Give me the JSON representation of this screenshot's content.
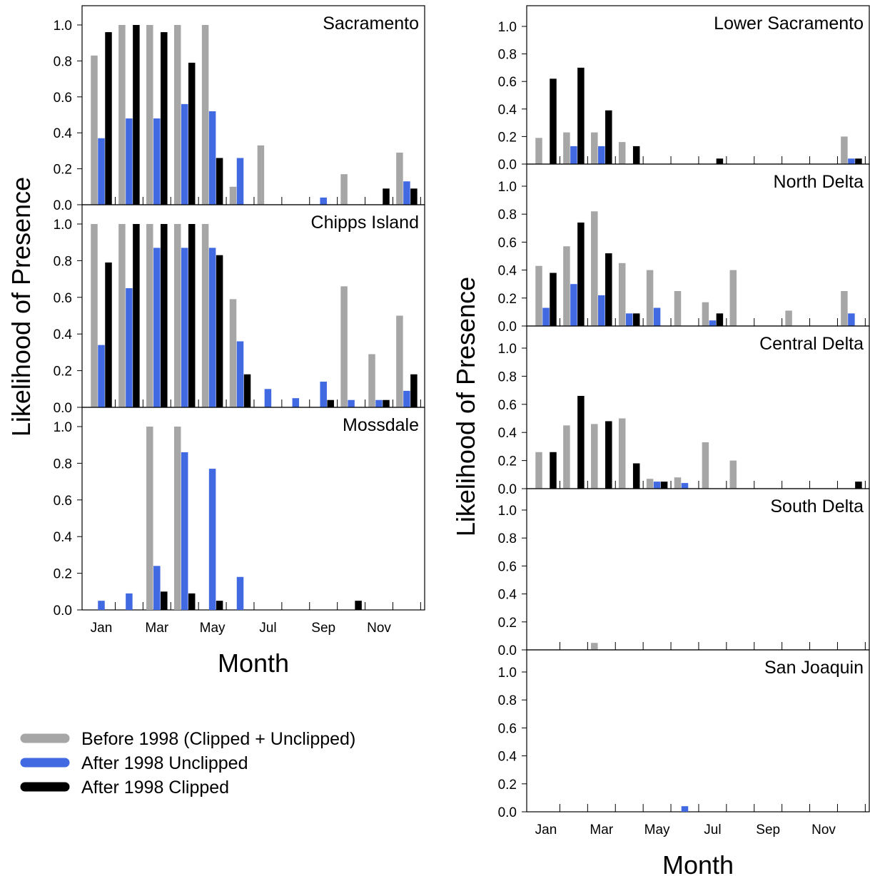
{
  "chart_data": {
    "type": "bar",
    "colors": {
      "before_1998": "#a6a6a6",
      "after_1998_unclipped": "#4169e1",
      "after_1998_clipped": "#000000"
    },
    "legend": {
      "placement": "bottom-left",
      "entries": [
        "Before 1998 (Clipped + Unclipped)",
        "After 1998 Unclipped",
        "After 1998 Clipped"
      ]
    },
    "series_keys": [
      "before_1998",
      "after_1998_unclipped",
      "after_1998_clipped"
    ],
    "month_tick_labels": [
      "Jan",
      "Mar",
      "May",
      "Jul",
      "Sep",
      "Nov"
    ],
    "y_tick_labels": [
      "0.0",
      "0.2",
      "0.4",
      "0.6",
      "0.8",
      "1.0"
    ],
    "ylim": [
      0,
      1.05
    ],
    "xlabel": "Month",
    "ylabel": "Likelihood of Presence",
    "categories": [
      "Jan",
      "Feb",
      "Mar",
      "Apr",
      "May",
      "Jun",
      "Jul",
      "Aug",
      "Sep",
      "Oct",
      "Nov",
      "Dec"
    ],
    "panels": [
      {
        "title": "Sacramento",
        "series": [
          {
            "values": [
              0.83,
              1.0,
              1.0,
              1.0,
              1.0,
              0.1,
              0.33,
              0,
              0,
              0.17,
              0,
              0.29
            ]
          },
          {
            "values": [
              0.37,
              0.48,
              0.48,
              0.56,
              0.52,
              0.26,
              0,
              0,
              0.04,
              0,
              0,
              0.13
            ]
          },
          {
            "values": [
              0.96,
              1.0,
              0.96,
              0.79,
              0.26,
              0,
              0,
              0,
              0,
              0,
              0.09,
              0.09
            ]
          }
        ]
      },
      {
        "title": "Chipps Island",
        "series": [
          {
            "values": [
              1.0,
              1.0,
              1.0,
              1.0,
              1.0,
              0.59,
              0,
              0,
              0,
              0.66,
              0.29,
              0.5
            ]
          },
          {
            "values": [
              0.34,
              0.65,
              0.87,
              0.87,
              0.87,
              0.36,
              0.1,
              0.05,
              0.14,
              0.04,
              0.04,
              0.09
            ]
          },
          {
            "values": [
              0.79,
              1.0,
              1.0,
              1.0,
              0.83,
              0.18,
              0,
              0,
              0.04,
              0,
              0.04,
              0.18
            ]
          }
        ]
      },
      {
        "title": "Mossdale",
        "series": [
          {
            "values": [
              0,
              0,
              1.0,
              1.0,
              0,
              0,
              0,
              0,
              0,
              0,
              0,
              0
            ]
          },
          {
            "values": [
              0.05,
              0.09,
              0.24,
              0.86,
              0.77,
              0.18,
              0,
              0,
              0,
              0,
              0,
              0
            ]
          },
          {
            "values": [
              0,
              0,
              0.1,
              0.09,
              0.05,
              0,
              0,
              0,
              0,
              0.05,
              0,
              0
            ]
          }
        ]
      },
      {
        "title": "Lower Sacramento",
        "series": [
          {
            "values": [
              0.19,
              0.23,
              0.23,
              0.16,
              0,
              0,
              0,
              0,
              0,
              0,
              0,
              0.2
            ]
          },
          {
            "values": [
              0,
              0.13,
              0.13,
              0,
              0,
              0,
              0,
              0,
              0,
              0,
              0,
              0.04
            ]
          },
          {
            "values": [
              0.62,
              0.7,
              0.39,
              0.13,
              0,
              0,
              0.04,
              0,
              0,
              0,
              0,
              0.04
            ]
          }
        ]
      },
      {
        "title": "North Delta",
        "series": [
          {
            "values": [
              0.43,
              0.57,
              0.82,
              0.45,
              0.4,
              0.25,
              0.17,
              0.4,
              0,
              0.11,
              0,
              0.25
            ]
          },
          {
            "values": [
              0.13,
              0.3,
              0.22,
              0.09,
              0.13,
              0,
              0.04,
              0,
              0,
              0,
              0,
              0.09
            ]
          },
          {
            "values": [
              0.38,
              0.74,
              0.52,
              0.09,
              0,
              0,
              0.09,
              0,
              0,
              0,
              0,
              0
            ]
          }
        ]
      },
      {
        "title": "Central Delta",
        "series": [
          {
            "values": [
              0.26,
              0.45,
              0.46,
              0.5,
              0.07,
              0.08,
              0.33,
              0.2,
              0,
              0,
              0,
              0
            ]
          },
          {
            "values": [
              0,
              0,
              0,
              0,
              0.05,
              0.04,
              0,
              0,
              0,
              0,
              0,
              0
            ]
          },
          {
            "values": [
              0.26,
              0.66,
              0.48,
              0.18,
              0.05,
              0,
              0,
              0,
              0,
              0,
              0,
              0.05
            ]
          }
        ]
      },
      {
        "title": "South Delta",
        "series": [
          {
            "values": [
              0,
              0,
              0.05,
              0,
              0,
              0,
              0,
              0,
              0,
              0,
              0,
              0
            ]
          },
          {
            "values": [
              0,
              0,
              0,
              0,
              0,
              0,
              0,
              0,
              0,
              0,
              0,
              0
            ]
          },
          {
            "values": [
              0,
              0,
              0,
              0,
              0,
              0,
              0,
              0,
              0,
              0,
              0,
              0
            ]
          }
        ]
      },
      {
        "title": "San Joaquin",
        "series": [
          {
            "values": [
              0,
              0,
              0,
              0,
              0,
              0,
              0,
              0,
              0,
              0,
              0,
              0
            ]
          },
          {
            "values": [
              0,
              0,
              0,
              0,
              0,
              0.04,
              0,
              0,
              0,
              0,
              0,
              0
            ]
          },
          {
            "values": [
              0,
              0,
              0,
              0,
              0,
              0,
              0,
              0,
              0,
              0,
              0,
              0
            ]
          }
        ]
      }
    ]
  }
}
